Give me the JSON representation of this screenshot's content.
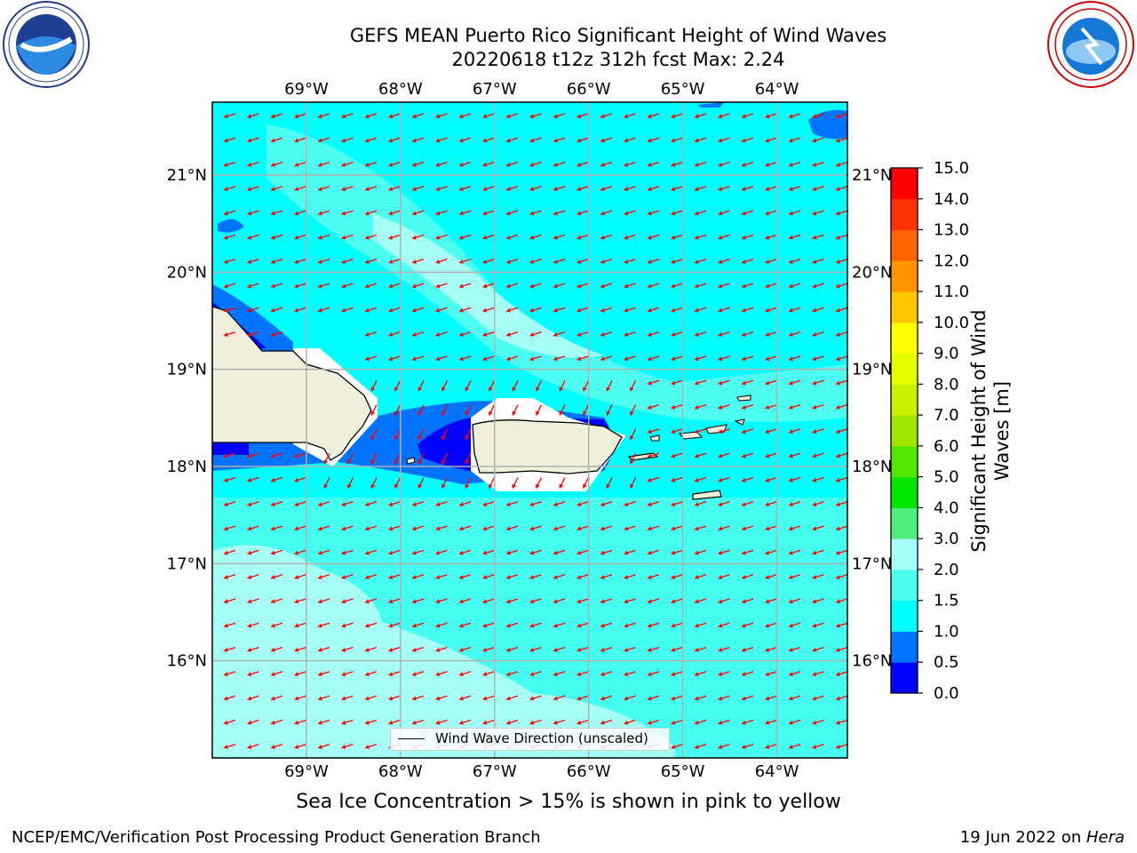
{
  "title_line1": "GEFS MEAN Puerto Rico Significant Height of Wind Waves",
  "title_line2": "20220618 t12z 312h fcst   Max: 2.24",
  "subtitle": "Sea Ice Concentration > 15% is shown in pink to yellow",
  "footer_left": "NCEP/EMC/Verification Post Processing Product Generation Branch",
  "footer_date": "19 Jun 2022 on ",
  "footer_host": "Hera",
  "legend_label": "Wind Wave Direction (unscaled)",
  "colorbar": {
    "label": "Significant Height of Wind Waves [m]",
    "ticks": [
      "0.0",
      "0.5",
      "1.0",
      "1.5",
      "2.0",
      "3.0",
      "4.0",
      "5.0",
      "6.0",
      "7.0",
      "8.0",
      "9.0",
      "10.0",
      "11.0",
      "12.0",
      "13.0",
      "14.0",
      "15.0"
    ],
    "colors": [
      "#0000ff",
      "#0073ff",
      "#00ffff",
      "#4dfff0",
      "#a6fff5",
      "#4ded80",
      "#00e600",
      "#50e600",
      "#a0e600",
      "#c8f000",
      "#e6ff00",
      "#ffff00",
      "#ffc800",
      "#ff9600",
      "#ff6400",
      "#ff3200",
      "#ff0000"
    ]
  },
  "map": {
    "lon_range": [
      -70.0,
      -63.25
    ],
    "lat_range": [
      15.0,
      21.75
    ],
    "lon_ticks": [
      "69°W",
      "68°W",
      "67°W",
      "66°W",
      "65°W",
      "64°W"
    ],
    "lat_ticks": [
      "16°N",
      "17°N",
      "18°N",
      "19°N",
      "20°N",
      "21°N"
    ],
    "ocean_color": "#00ffff",
    "land_color": "#efefdc",
    "arrow_color": "#ff0000",
    "arrow_direction": "toward west-southwest"
  }
}
